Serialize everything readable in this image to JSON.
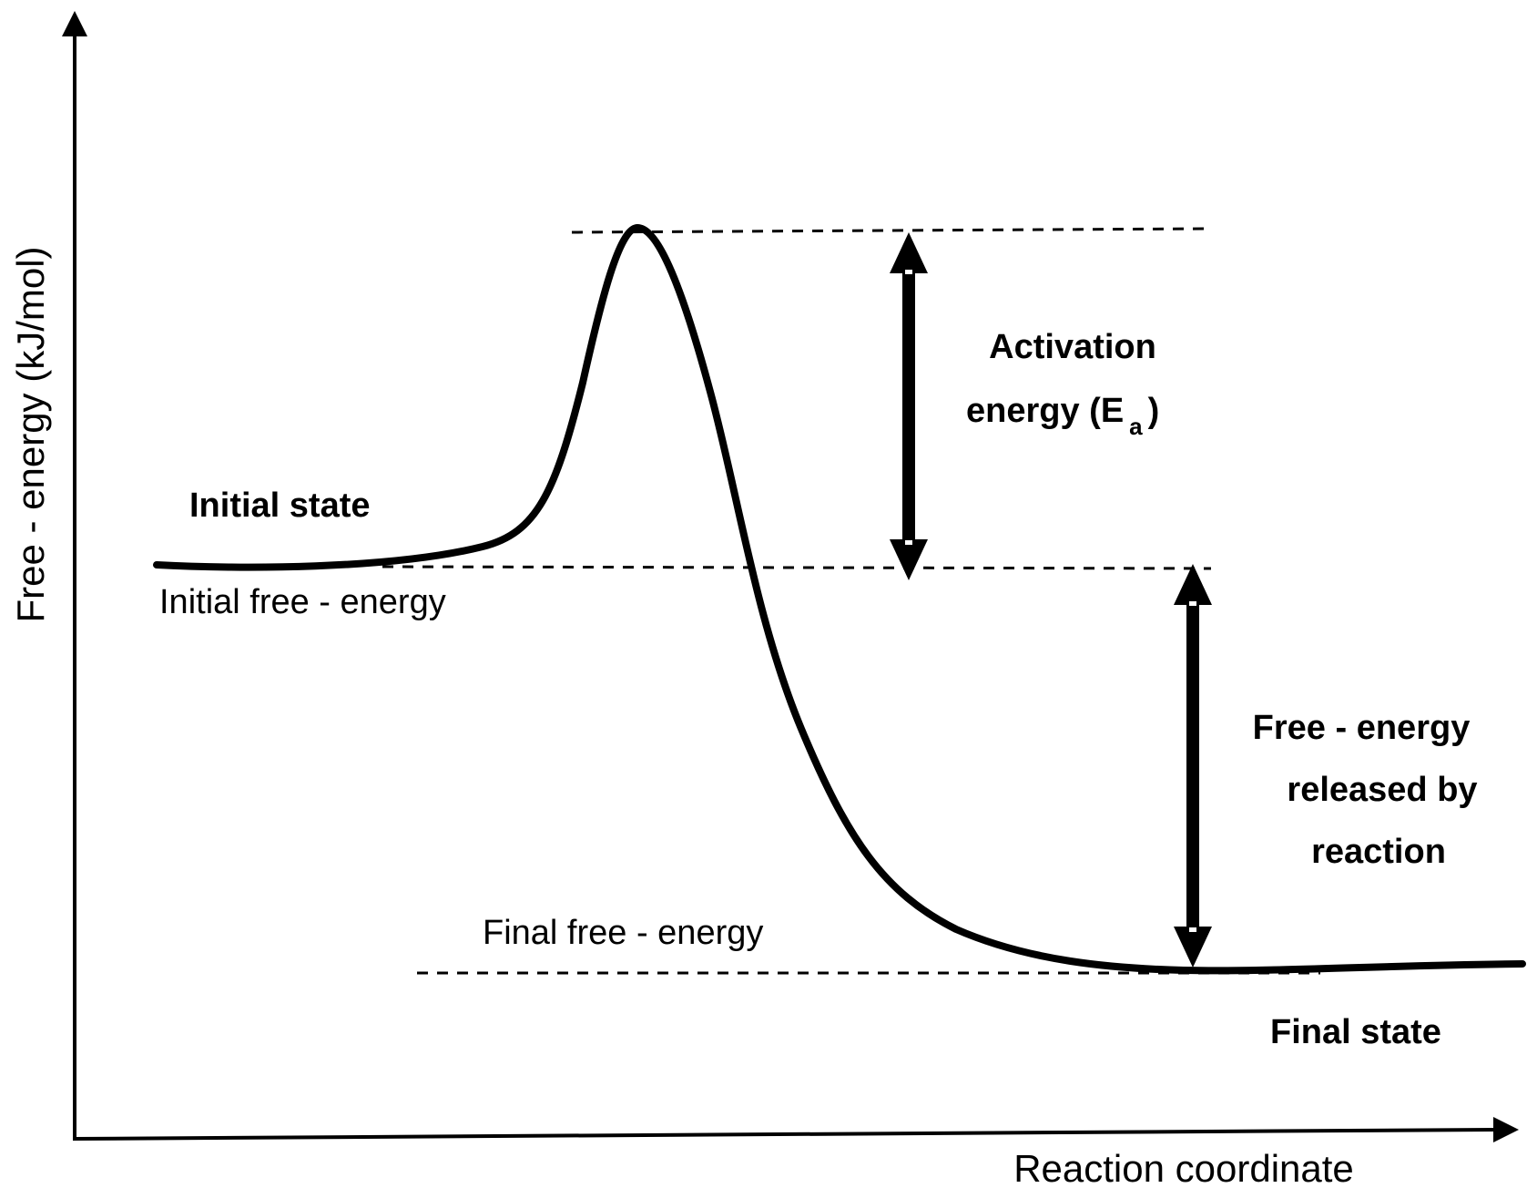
{
  "axes": {
    "y_label": "Free - energy (kJ/mol)",
    "x_label": "Reaction coordinate"
  },
  "states": {
    "initial_state": "Initial state",
    "final_state": "Final state"
  },
  "levels": {
    "initial_free_energy": "Initial free - energy",
    "final_free_energy": "Final free - energy"
  },
  "activation_energy": {
    "line1": "Activation",
    "line2_prefix": "energy (E",
    "subscript": "a",
    "line2_suffix": ")"
  },
  "released_energy": {
    "line1": "Free - energy",
    "line2": "released by",
    "line3": "reaction"
  },
  "colors": {
    "ink": "#000000",
    "background": "#ffffff"
  }
}
